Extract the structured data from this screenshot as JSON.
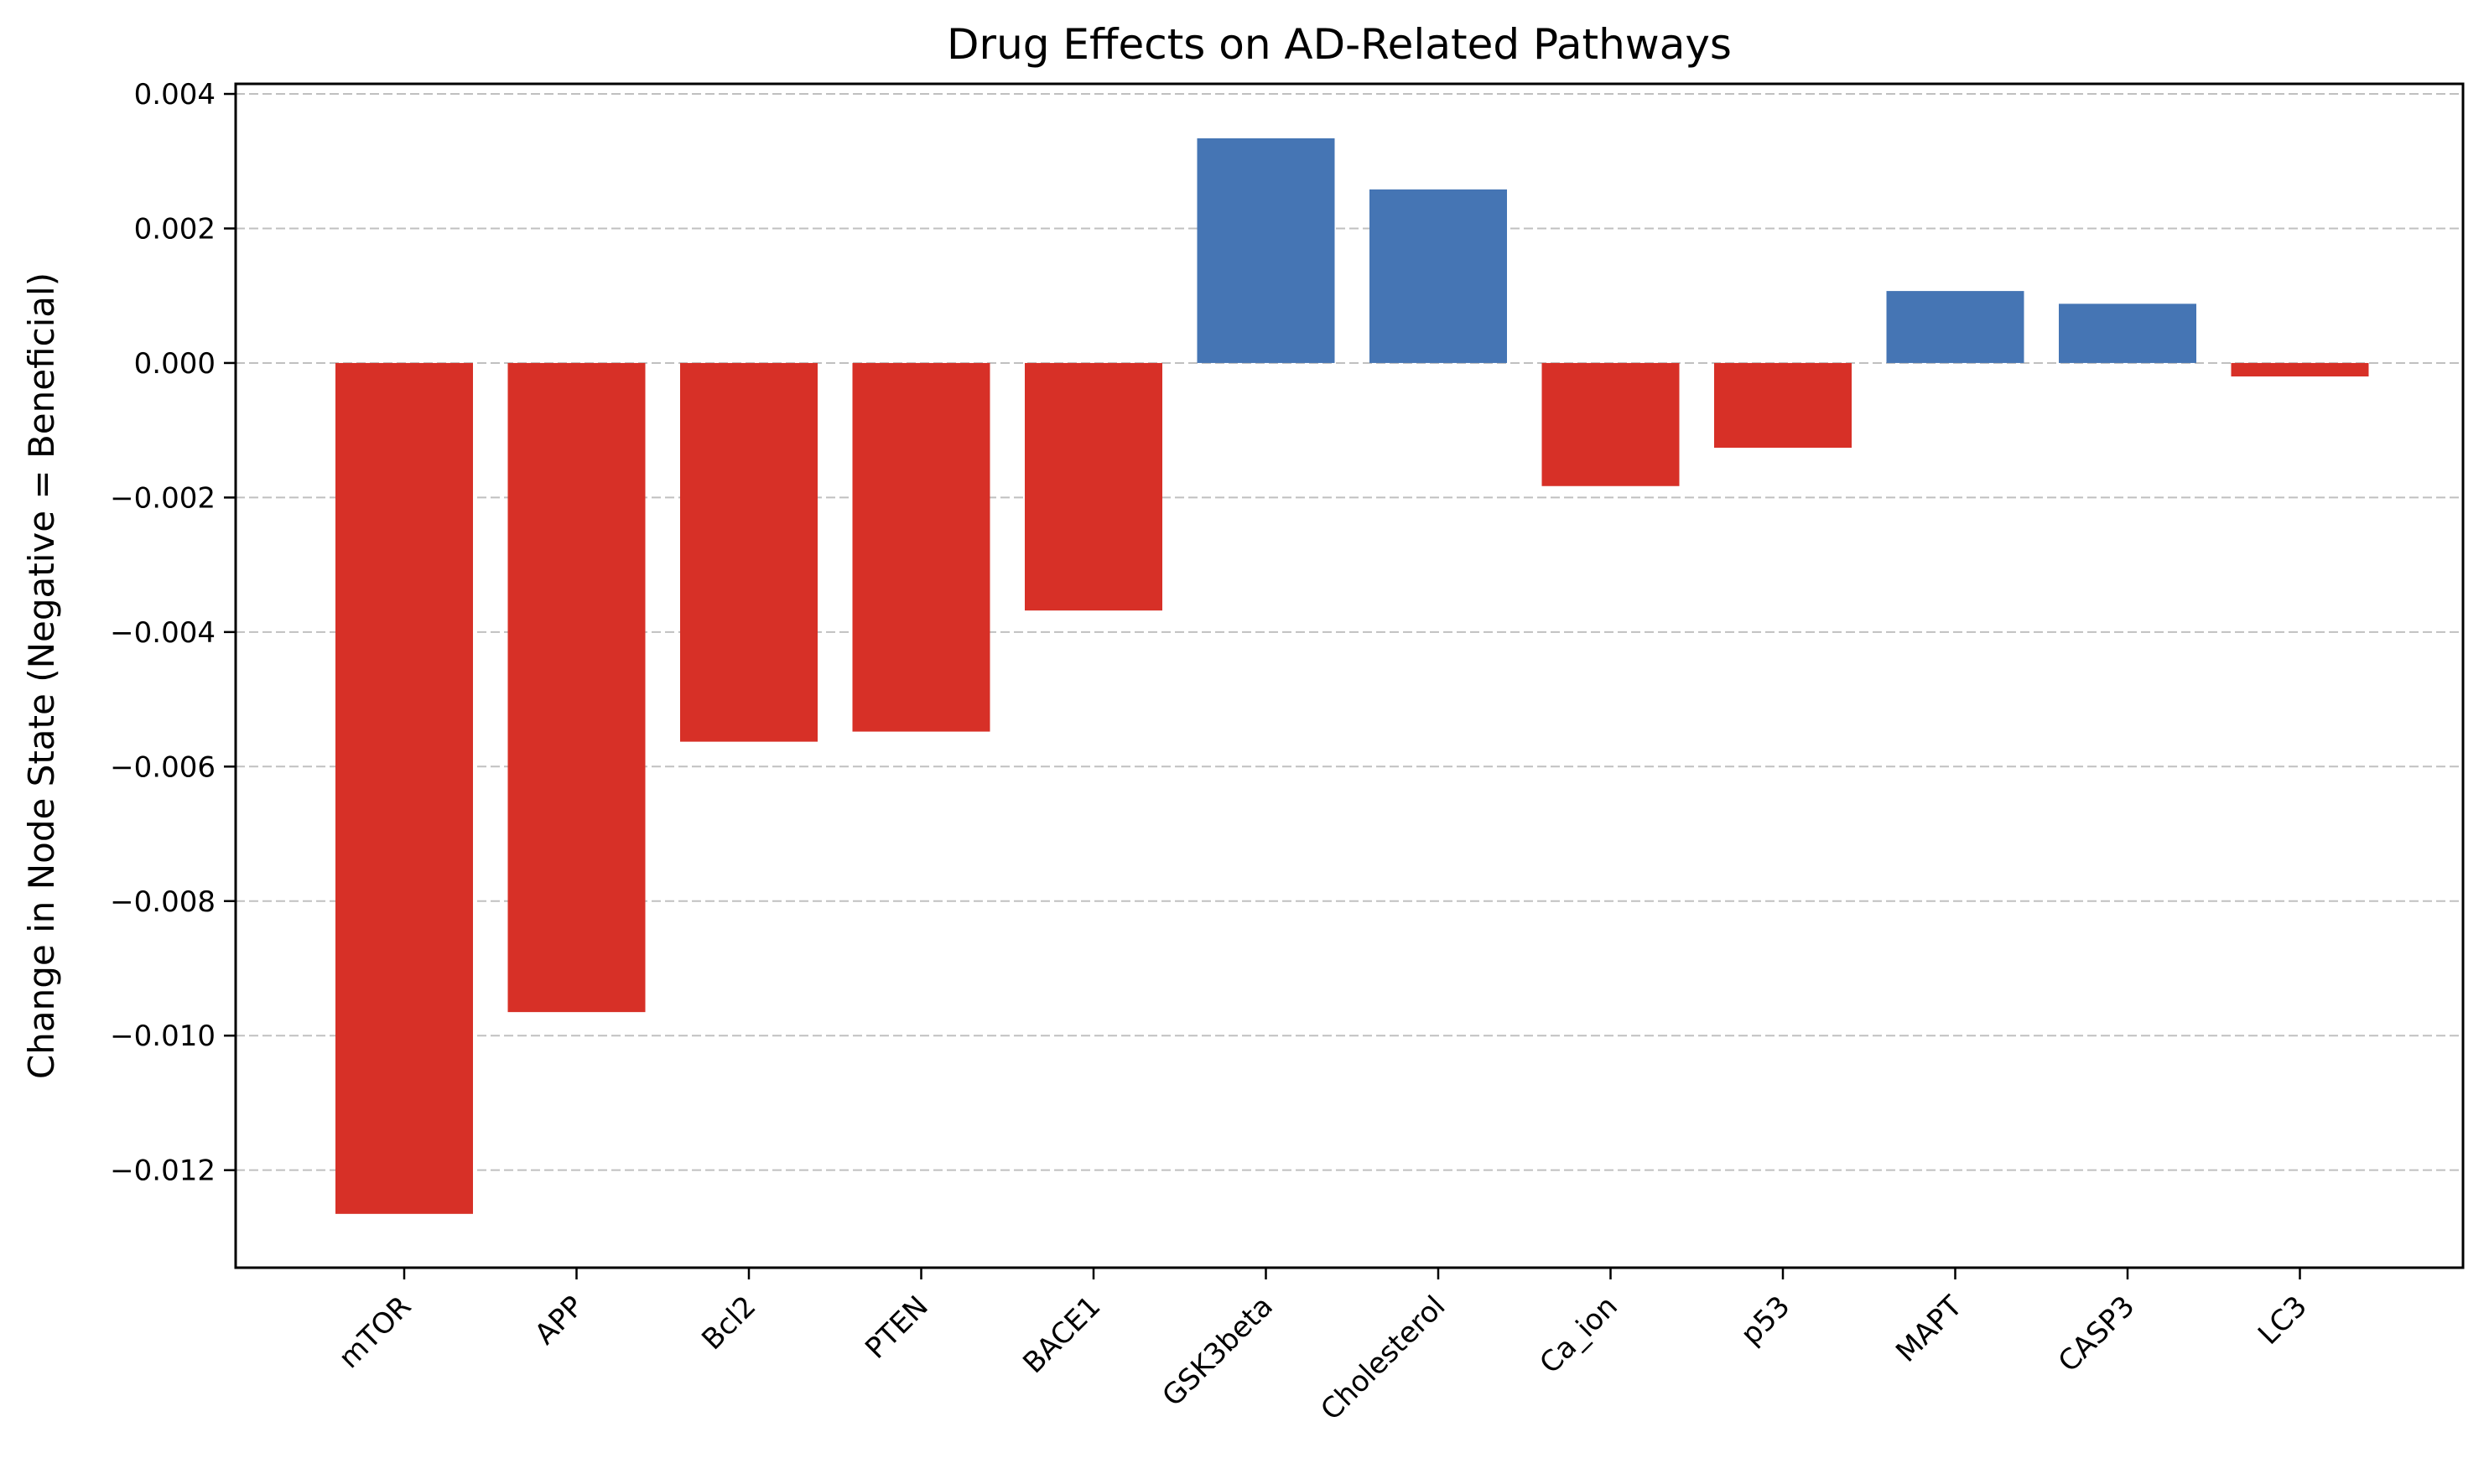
{
  "chart_data": {
    "type": "bar",
    "title": "Drug Effects on AD-Related Pathways",
    "xlabel": "",
    "ylabel": "Change in Node State (Negative = Beneficial)",
    "categories": [
      "mTOR",
      "APP",
      "Bcl2",
      "PTEN",
      "BACE1",
      "GSK3beta",
      "Cholesterol",
      "Ca_ion",
      "p53",
      "MAPT",
      "CASP3",
      "LC3"
    ],
    "values": [
      -0.01265,
      -0.00965,
      -0.00563,
      -0.00548,
      -0.00368,
      0.00334,
      0.00258,
      -0.00183,
      -0.00126,
      0.00107,
      0.00088,
      -0.0002
    ],
    "ylim": [
      -0.01345,
      0.00415
    ],
    "yticks": [
      0.004,
      0.002,
      0.0,
      -0.002,
      -0.004,
      -0.006,
      -0.008,
      -0.01,
      -0.012
    ],
    "ytick_labels": [
      "0.004",
      "0.002",
      "0.000",
      "−0.002",
      "−0.004",
      "−0.006",
      "−0.008",
      "−0.010",
      "−0.012"
    ],
    "grid": "y-dashed",
    "colors": {
      "negative": "#d73027",
      "positive": "#4575b4",
      "grid": "#c0c0c0"
    }
  }
}
